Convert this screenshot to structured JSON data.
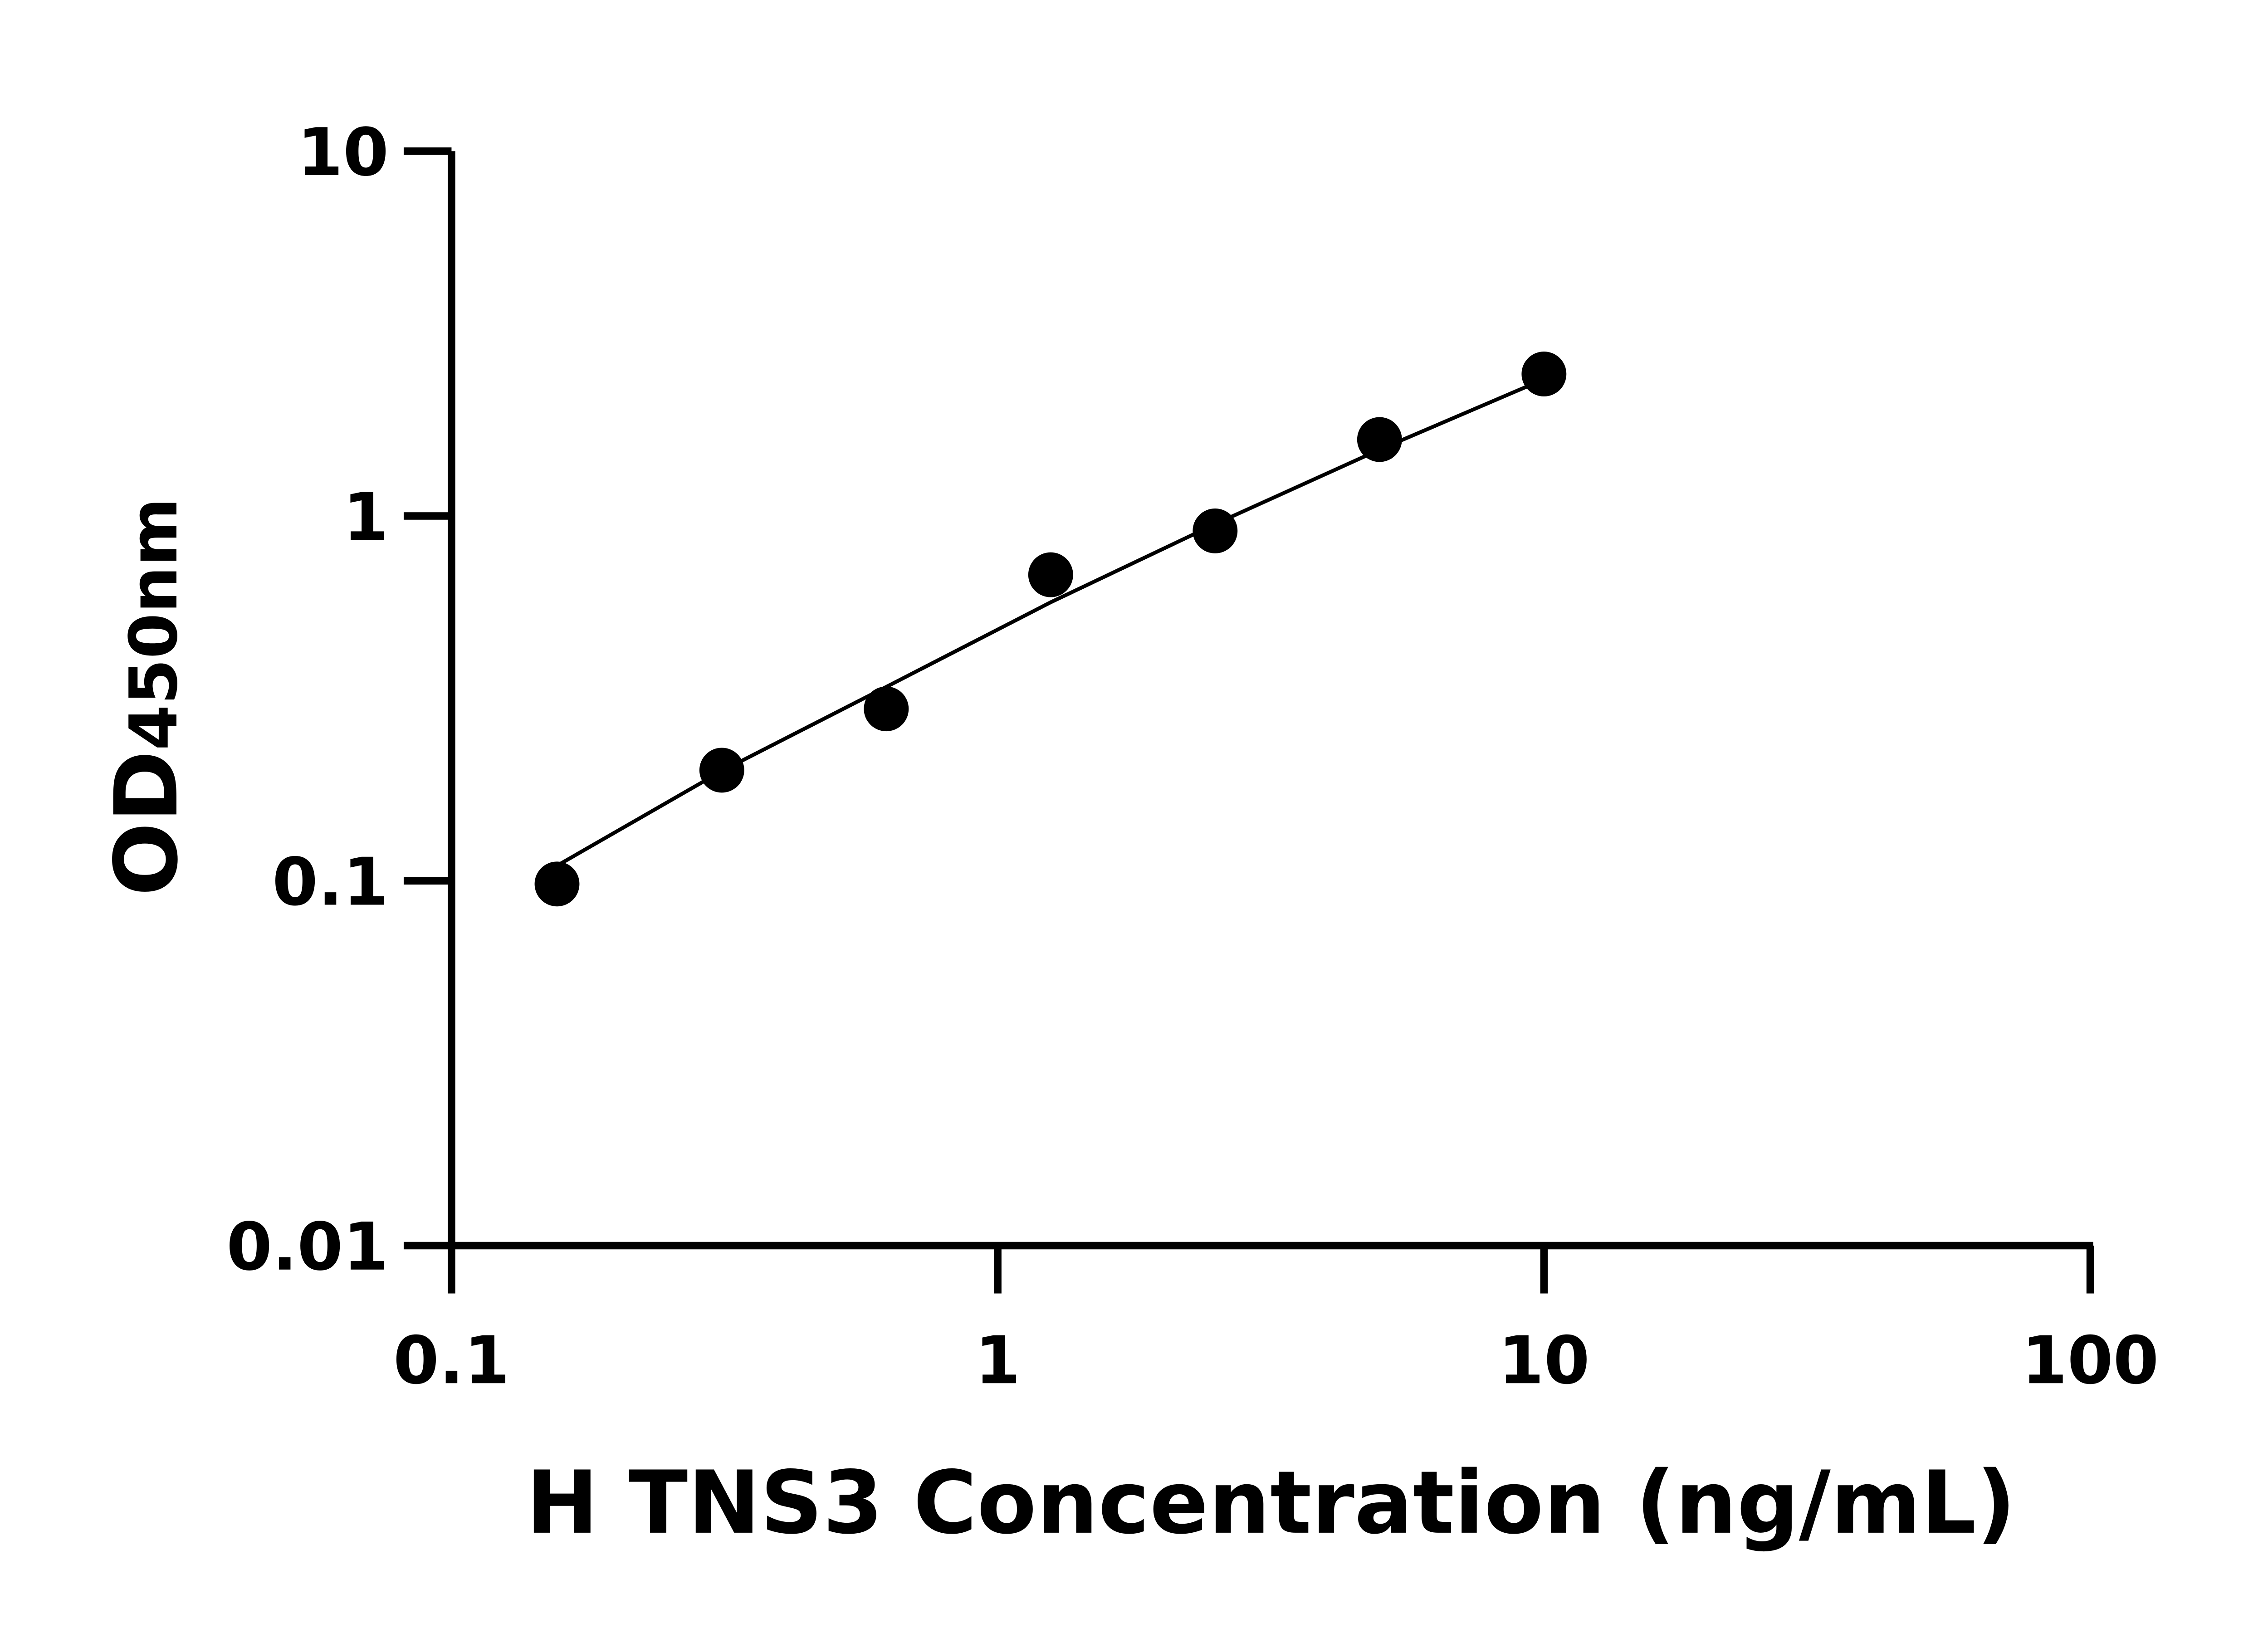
{
  "chart_data": {
    "type": "scatter",
    "title": "",
    "xlabel": "H TNS3 Concentration (ng/mL)",
    "ylabel_main": "OD",
    "ylabel_sub": "450nm",
    "x_scale": "log",
    "y_scale": "log",
    "xlim": [
      0.1,
      100
    ],
    "ylim": [
      0.01,
      10
    ],
    "x_ticks": [
      0.1,
      1,
      10,
      100
    ],
    "x_tick_labels": [
      "0.1",
      "1",
      "10",
      "100"
    ],
    "y_ticks": [
      0.01,
      0.1,
      1,
      10
    ],
    "y_tick_labels": [
      "0.01",
      "0.1",
      "1",
      "10"
    ],
    "grid": false,
    "legend": "none",
    "points": {
      "x": [
        0.156,
        0.3125,
        0.625,
        1.25,
        2.5,
        5,
        10
      ],
      "y": [
        0.098,
        0.201,
        0.296,
        0.69,
        0.91,
        1.62,
        2.45
      ]
    },
    "fit_curve": {
      "x": [
        0.156,
        0.3125,
        0.625,
        1.25,
        2.5,
        5,
        10
      ],
      "y": [
        0.11,
        0.2,
        0.34,
        0.58,
        0.95,
        1.52,
        2.37
      ]
    },
    "colors": {
      "points": "#000000",
      "line": "#000000",
      "axes": "#000000"
    }
  }
}
